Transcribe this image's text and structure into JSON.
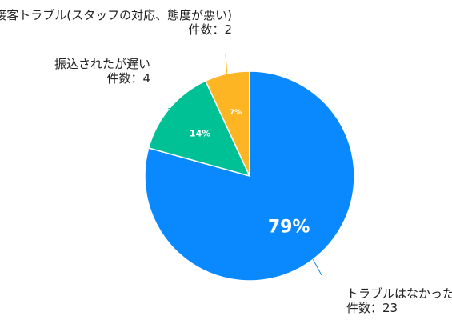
{
  "chart_data": {
    "type": "pie",
    "start_angle_deg": 0,
    "direction": "clockwise",
    "slices": [
      {
        "category": "トラブルはなかった",
        "count_text": "件数：23",
        "value": 23,
        "percent_label": "79%",
        "color": "#0A89FF"
      },
      {
        "category": "振込されたが遅い",
        "count_text": "件数：4",
        "value": 4,
        "percent_label": "14%",
        "color": "#00C195"
      },
      {
        "category": "接客トラブル(スタッフの対応、態度が悪い)",
        "count_text": "件数：2",
        "value": 2,
        "percent_label": "7%",
        "color": "#FDB523"
      }
    ],
    "title": "",
    "legend": "none"
  }
}
